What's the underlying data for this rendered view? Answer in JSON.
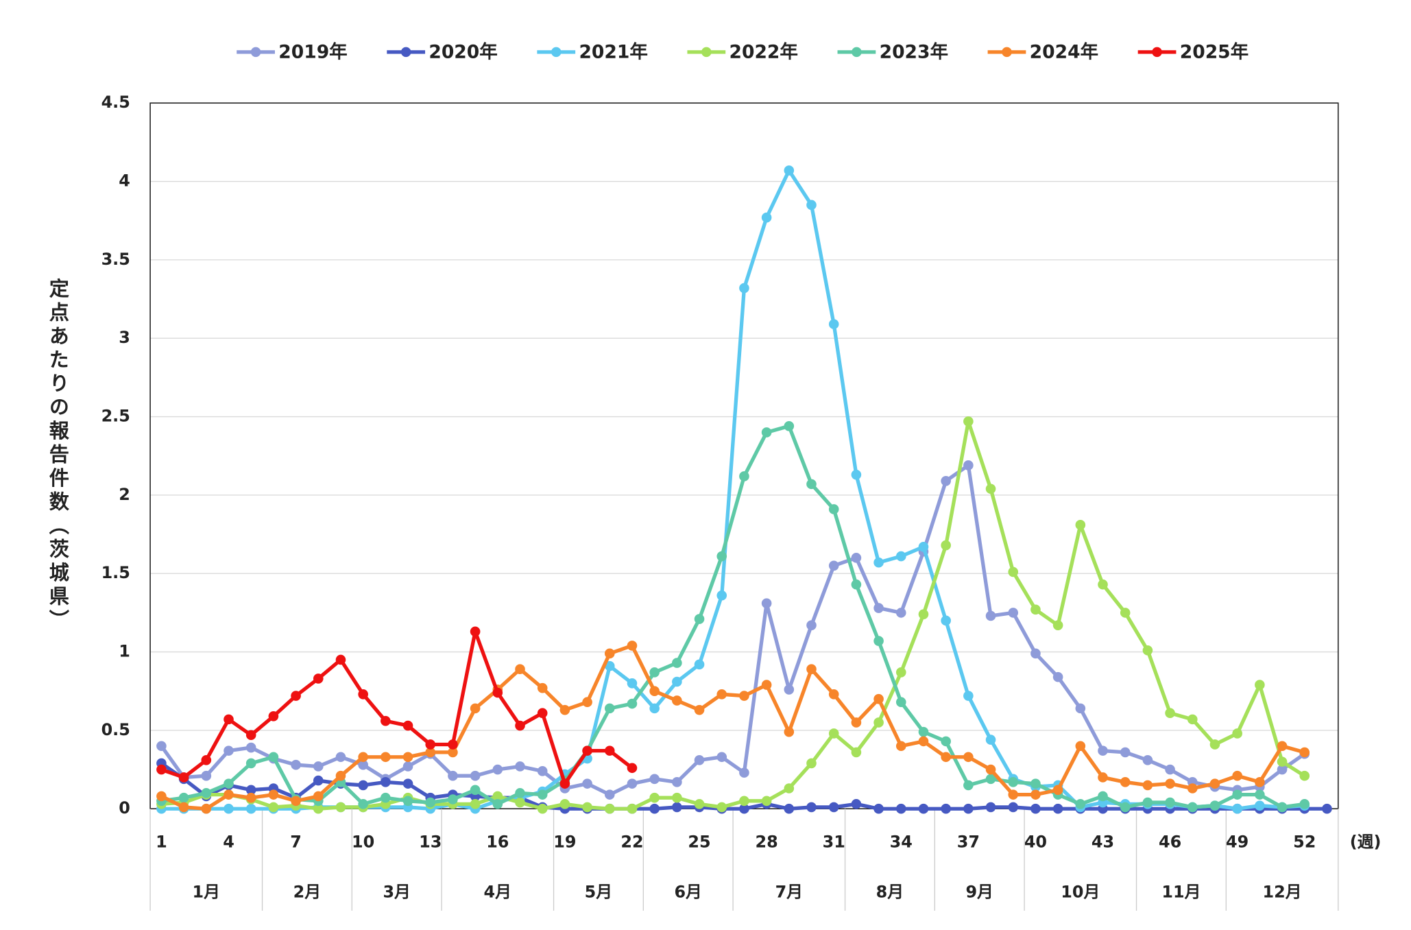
{
  "chart_data": {
    "type": "line",
    "ylabel": "定点あたりの報告件数（茨城県）",
    "xlabel": "(週)",
    "x": [
      1,
      2,
      3,
      4,
      5,
      6,
      7,
      8,
      9,
      10,
      11,
      12,
      13,
      14,
      15,
      16,
      17,
      18,
      19,
      20,
      21,
      22,
      23,
      24,
      25,
      26,
      27,
      28,
      29,
      30,
      31,
      32,
      33,
      34,
      35,
      36,
      37,
      38,
      39,
      40,
      41,
      42,
      43,
      44,
      45,
      46,
      47,
      48,
      49,
      50,
      51,
      52,
      53
    ],
    "xlim": [
      0.5,
      53.5
    ],
    "xticks": [
      1,
      4,
      7,
      10,
      13,
      16,
      19,
      22,
      25,
      28,
      31,
      34,
      37,
      40,
      43,
      46,
      49,
      52
    ],
    "ylim": [
      0,
      4.5
    ],
    "yticks": [
      0,
      0.5,
      1,
      1.5,
      2,
      2.5,
      3,
      3.5,
      4,
      4.5
    ],
    "grid": true,
    "legend": "top",
    "months": [
      {
        "label": "1月",
        "weeks": 5
      },
      {
        "label": "2月",
        "weeks": 4
      },
      {
        "label": "3月",
        "weeks": 4
      },
      {
        "label": "4月",
        "weeks": 5
      },
      {
        "label": "5月",
        "weeks": 4
      },
      {
        "label": "6月",
        "weeks": 4
      },
      {
        "label": "7月",
        "weeks": 5
      },
      {
        "label": "8月",
        "weeks": 4
      },
      {
        "label": "9月",
        "weeks": 4
      },
      {
        "label": "10月",
        "weeks": 5
      },
      {
        "label": "11月",
        "weeks": 4
      },
      {
        "label": "12月",
        "weeks": 5
      }
    ],
    "series": [
      {
        "name": "2019年",
        "color": "#8e9bd9",
        "values": [
          0.4,
          0.2,
          0.21,
          0.37,
          0.39,
          0.32,
          0.28,
          0.27,
          0.33,
          0.28,
          0.19,
          0.27,
          0.35,
          0.21,
          0.21,
          0.25,
          0.27,
          0.24,
          0.13,
          0.16,
          0.09,
          0.16,
          0.19,
          0.17,
          0.31,
          0.33,
          0.23,
          1.31,
          0.76,
          1.17,
          1.55,
          1.6,
          1.28,
          1.25,
          1.64,
          2.09,
          2.19,
          1.23,
          1.25,
          0.99,
          0.84,
          0.64,
          0.37,
          0.36,
          0.31,
          0.25,
          0.17,
          0.14,
          0.12,
          0.14,
          0.25,
          0.35,
          null
        ]
      },
      {
        "name": "2020年",
        "color": "#4659c2",
        "values": [
          0.29,
          0.19,
          0.08,
          0.15,
          0.12,
          0.13,
          0.07,
          0.18,
          0.16,
          0.15,
          0.17,
          0.16,
          0.07,
          0.09,
          0.08,
          0.07,
          0.07,
          0.01,
          0,
          0,
          0,
          0,
          0,
          0.01,
          0.01,
          0,
          0,
          0.03,
          0,
          0.01,
          0.01,
          0.03,
          0,
          0,
          0,
          0,
          0,
          0.01,
          0.01,
          0,
          0,
          0,
          0,
          0,
          0,
          0,
          0,
          0,
          0,
          0,
          0,
          0,
          0
        ]
      },
      {
        "name": "2021年",
        "color": "#5bc8f0",
        "values": [
          0,
          0,
          0,
          0,
          0,
          0,
          0,
          0.01,
          0.01,
          0.01,
          0.01,
          0.01,
          0,
          0.03,
          0,
          0.05,
          0.07,
          0.11,
          0.22,
          0.32,
          0.91,
          0.8,
          0.64,
          0.81,
          0.92,
          1.36,
          3.32,
          3.77,
          4.07,
          3.85,
          3.09,
          2.13,
          1.57,
          1.61,
          1.67,
          1.2,
          0.72,
          0.44,
          0.19,
          0.14,
          0.15,
          0.01,
          0.04,
          0.03,
          0.03,
          0.03,
          0.01,
          0.02,
          0,
          0.02,
          0.01,
          0.02,
          null
        ]
      },
      {
        "name": "2022年",
        "color": "#a5e05a",
        "values": [
          0.03,
          0.04,
          0.09,
          0.09,
          0.06,
          0.01,
          0.02,
          0,
          0.01,
          0.01,
          0.03,
          0.07,
          0.03,
          0.03,
          0.03,
          0.08,
          0.04,
          0,
          0.03,
          0.01,
          0,
          0,
          0.07,
          0.07,
          0.03,
          0.01,
          0.05,
          0.05,
          0.13,
          0.29,
          0.48,
          0.36,
          0.55,
          0.87,
          1.24,
          1.68,
          2.47,
          2.04,
          1.51,
          1.27,
          1.17,
          1.81,
          1.43,
          1.25,
          1.01,
          0.61,
          0.57,
          0.41,
          0.48,
          0.79,
          0.3,
          0.21,
          null
        ]
      },
      {
        "name": "2023年",
        "color": "#5ec9a6",
        "values": [
          0.05,
          0.07,
          0.1,
          0.16,
          0.29,
          0.33,
          0.06,
          0.05,
          0.17,
          0.03,
          0.07,
          0.05,
          0.04,
          0.06,
          0.12,
          0.03,
          0.1,
          0.09,
          0.18,
          0.37,
          0.64,
          0.67,
          0.87,
          0.93,
          1.21,
          1.61,
          2.12,
          2.4,
          2.44,
          2.07,
          1.91,
          1.43,
          1.07,
          0.68,
          0.49,
          0.43,
          0.15,
          0.19,
          0.17,
          0.16,
          0.09,
          0.03,
          0.08,
          0.01,
          0.04,
          0.04,
          0.01,
          0.02,
          0.09,
          0.09,
          0.01,
          0.03,
          null
        ]
      },
      {
        "name": "2024年",
        "color": "#f7852a",
        "values": [
          0.08,
          0.01,
          0,
          0.09,
          0.07,
          0.09,
          0.05,
          0.08,
          0.21,
          0.33,
          0.33,
          0.33,
          0.36,
          0.36,
          0.64,
          0.76,
          0.89,
          0.77,
          0.63,
          0.68,
          0.99,
          1.04,
          0.75,
          0.69,
          0.63,
          0.73,
          0.72,
          0.79,
          0.49,
          0.89,
          0.73,
          0.55,
          0.7,
          0.4,
          0.43,
          0.33,
          0.33,
          0.25,
          0.09,
          0.09,
          0.12,
          0.4,
          0.2,
          0.17,
          0.15,
          0.16,
          0.13,
          0.16,
          0.21,
          0.17,
          0.4,
          0.36,
          null
        ]
      },
      {
        "name": "2025年",
        "color": "#ee1111",
        "values": [
          0.25,
          0.2,
          0.31,
          0.57,
          0.47,
          0.59,
          0.72,
          0.83,
          0.95,
          0.73,
          0.56,
          0.53,
          0.41,
          0.41,
          1.13,
          0.74,
          0.53,
          0.61,
          0.16,
          0.37,
          0.37,
          0.26,
          null,
          null,
          null,
          null,
          null,
          null,
          null,
          null,
          null,
          null,
          null,
          null,
          null,
          null,
          null,
          null,
          null,
          null,
          null,
          null,
          null,
          null,
          null,
          null,
          null,
          null,
          null,
          null,
          null,
          null,
          null
        ]
      }
    ]
  }
}
